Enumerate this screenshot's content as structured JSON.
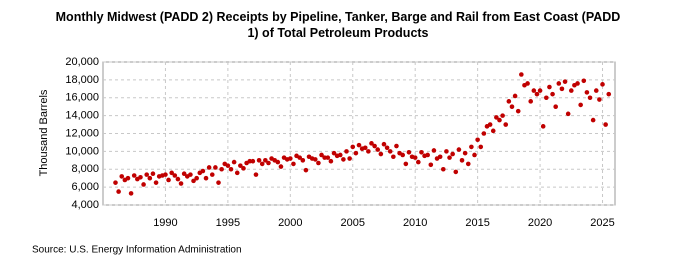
{
  "chart_data": {
    "type": "scatter",
    "title": "Monthly Midwest (PADD 2) Receipts by Pipeline, Tanker, Barge and Rail from East Coast (PADD 1) of Total Petroleum Products",
    "y_label": "Thousand Barrels",
    "source": "Source: U.S. Energy Information Administration",
    "color": "#c00000",
    "grid": true,
    "xlim": [
      1985,
      2026
    ],
    "xticks": [
      1990,
      1995,
      2000,
      2005,
      2010,
      2015,
      2020,
      2025
    ],
    "ylim": [
      4000,
      20000
    ],
    "yticks": [
      {
        "value": 4000,
        "label": "4,000"
      },
      {
        "value": 6000,
        "label": "6,000"
      },
      {
        "value": 8000,
        "label": "8,000"
      },
      {
        "value": 10000,
        "label": "10,000"
      },
      {
        "value": 12000,
        "label": "12,000"
      },
      {
        "value": 14000,
        "label": "14,000"
      },
      {
        "value": 16000,
        "label": "16,000"
      },
      {
        "value": 18000,
        "label": "18,000"
      },
      {
        "value": 20000,
        "label": "20,000"
      }
    ],
    "x": [
      1986.0,
      1986.25,
      1986.5,
      1986.75,
      1987.0,
      1987.25,
      1987.5,
      1987.75,
      1988.0,
      1988.25,
      1988.5,
      1988.75,
      1989.0,
      1989.25,
      1989.5,
      1989.75,
      1990.0,
      1990.25,
      1990.5,
      1990.75,
      1991.0,
      1991.25,
      1991.5,
      1991.75,
      1992.0,
      1992.25,
      1992.5,
      1992.75,
      1993.0,
      1993.25,
      1993.5,
      1993.75,
      1994.0,
      1994.25,
      1994.5,
      1994.75,
      1995.0,
      1995.25,
      1995.5,
      1995.75,
      1996.0,
      1996.25,
      1996.5,
      1996.75,
      1997.0,
      1997.25,
      1997.5,
      1997.75,
      1998.0,
      1998.25,
      1998.5,
      1998.75,
      1999.0,
      1999.25,
      1999.5,
      1999.75,
      2000.0,
      2000.25,
      2000.5,
      2000.75,
      2001.0,
      2001.25,
      2001.5,
      2001.75,
      2002.0,
      2002.25,
      2002.5,
      2002.75,
      2003.0,
      2003.25,
      2003.5,
      2003.75,
      2004.0,
      2004.25,
      2004.5,
      2004.75,
      2005.0,
      2005.25,
      2005.5,
      2005.75,
      2006.0,
      2006.25,
      2006.5,
      2006.75,
      2007.0,
      2007.25,
      2007.5,
      2007.75,
      2008.0,
      2008.25,
      2008.5,
      2008.75,
      2009.0,
      2009.25,
      2009.5,
      2009.75,
      2010.0,
      2010.25,
      2010.5,
      2010.75,
      2011.0,
      2011.25,
      2011.5,
      2011.75,
      2012.0,
      2012.25,
      2012.5,
      2012.75,
      2013.0,
      2013.25,
      2013.5,
      2013.75,
      2014.0,
      2014.25,
      2014.5,
      2014.75,
      2015.0,
      2015.25,
      2015.5,
      2015.75,
      2016.0,
      2016.25,
      2016.5,
      2016.75,
      2017.0,
      2017.25,
      2017.5,
      2017.75,
      2018.0,
      2018.25,
      2018.5,
      2018.75,
      2019.0,
      2019.25,
      2019.5,
      2019.75,
      2020.0,
      2020.25,
      2020.5,
      2020.75,
      2021.0,
      2021.25,
      2021.5,
      2021.75,
      2022.0,
      2022.25,
      2022.5,
      2022.75,
      2023.0,
      2023.25,
      2023.5,
      2023.75,
      2024.0,
      2024.25,
      2024.5,
      2024.75,
      2025.0,
      2025.25,
      2025.5
    ],
    "values": [
      6500,
      5500,
      7200,
      6800,
      7000,
      5300,
      7300,
      6900,
      7100,
      6300,
      7400,
      7000,
      7500,
      6500,
      7200,
      7300,
      7400,
      6800,
      7600,
      7300,
      6900,
      6400,
      7500,
      7200,
      7400,
      6700,
      7000,
      7600,
      7800,
      7000,
      8200,
      7400,
      8200,
      6500,
      8000,
      8600,
      8400,
      8000,
      8800,
      7600,
      8400,
      8100,
      8700,
      8900,
      8900,
      7400,
      9000,
      8600,
      9000,
      8700,
      9200,
      9000,
      8800,
      8300,
      9300,
      9100,
      9200,
      8600,
      9500,
      9300,
      9000,
      7900,
      9400,
      9200,
      9100,
      8700,
      9600,
      9300,
      9300,
      8900,
      9800,
      9500,
      9600,
      9100,
      10000,
      9200,
      10500,
      9800,
      10700,
      10300,
      10400,
      10000,
      10900,
      10600,
      10200,
      9700,
      10800,
      10400,
      10000,
      9400,
      10600,
      9800,
      9600,
      8600,
      9900,
      9400,
      9300,
      8800,
      9900,
      9500,
      9600,
      8500,
      10100,
      9200,
      9400,
      8000,
      10000,
      9300,
      9700,
      7700,
      10200,
      9000,
      9800,
      8600,
      10500,
      9600,
      11300,
      10500,
      12000,
      12800,
      13000,
      12300,
      13800,
      13500,
      14000,
      13000,
      15600,
      15000,
      16200,
      14500,
      18600,
      17400,
      17600,
      15600,
      16800,
      16400,
      16800,
      12800,
      16000,
      17200,
      16400,
      15000,
      17600,
      17000,
      17800,
      14200,
      16800,
      17400,
      17600,
      15200,
      17900,
      16600,
      16000,
      13500,
      16800,
      15800,
      17500,
      13000,
      16400
    ]
  }
}
